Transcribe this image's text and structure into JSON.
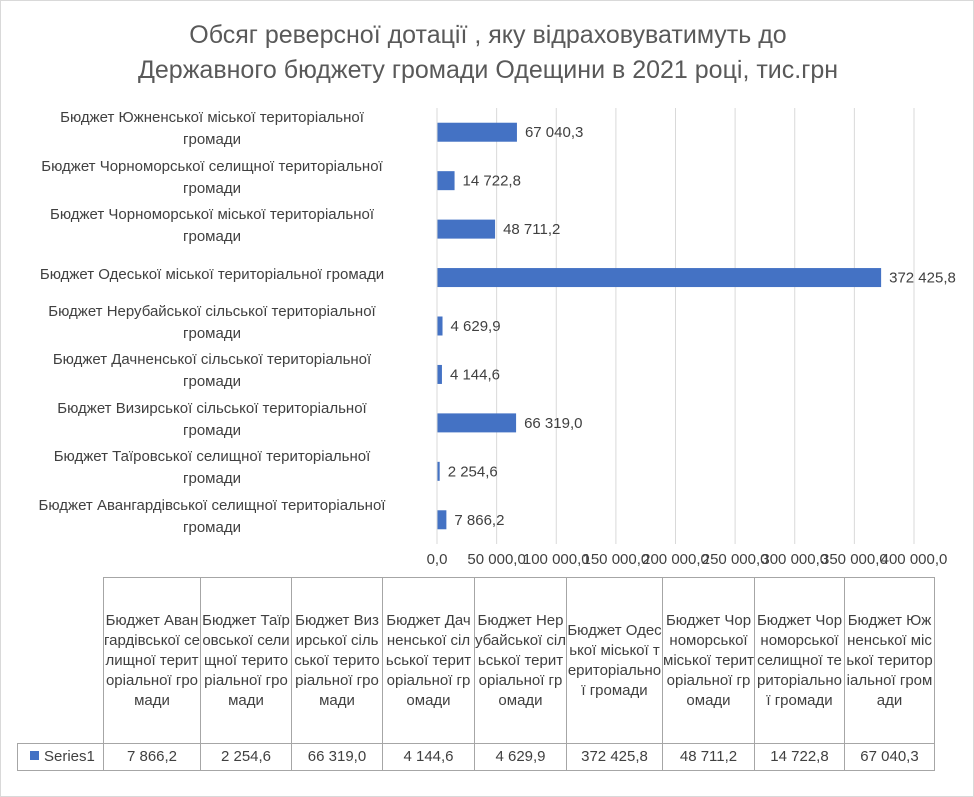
{
  "chart_data": {
    "type": "bar",
    "orientation": "horizontal",
    "title_lines": [
      "Обсяг реверсної  дотації , яку відраховуватимуть до",
      "Державного бюджету громади Одещини в 2021 році, тис.грн"
    ],
    "categories": [
      "Бюджет Авангардівської селищної територіальної громади",
      "Бюджет Таїровської селищної територіальної громади",
      "Бюджет Визирської сільської територіальної громади",
      "Бюджет Дачненської сільської територіальної громади",
      "Бюджет Нерубайської сільської територіальної громади",
      "Бюджет Одеської міської територіальної громади",
      "Бюджет Чорноморської міської територіальної громади",
      "Бюджет Чорноморської селищної територіальної громади",
      "Бюджет Южненської міської територіальної громади"
    ],
    "axis_category_labels": [
      [
        "Бюджет Авангардівської селищної територіальної",
        "громади"
      ],
      [
        "Бюджет Таїровської селищної територіальної",
        "громади"
      ],
      [
        "Бюджет Визирської сільської територіальної",
        "громади"
      ],
      [
        "Бюджет Дачненської сільської територіальної",
        "громади"
      ],
      [
        "Бюджет Нерубайської сільської територіальної",
        "громади"
      ],
      [
        "Бюджет Одеської міської територіальної громади"
      ],
      [
        "Бюджет Чорноморської міської територіальної",
        "громади"
      ],
      [
        "Бюджет Чорноморської селищної територіальної",
        "громади"
      ],
      [
        "Бюджет Южненської міської територіальної",
        "громади"
      ]
    ],
    "series": [
      {
        "name": "Series1",
        "values": [
          7866.2,
          2254.6,
          66319.0,
          4144.6,
          4629.9,
          372425.8,
          48711.2,
          14722.8,
          67040.3
        ],
        "labels": [
          "7 866,2",
          "2 254,6",
          "66 319,0",
          "4 144,6",
          "4 629,9",
          "372 425,8",
          "48 711,2",
          "14 722,8",
          "67 040,3"
        ]
      }
    ],
    "xlim": [
      0,
      400000
    ],
    "x_ticks": [
      0,
      50000,
      100000,
      150000,
      200000,
      250000,
      300000,
      350000,
      400000
    ],
    "x_tick_labels": [
      "0,0",
      "50 000,0",
      "100 000,0",
      "150 000,0",
      "200 000,0",
      "250 000,0",
      "300 000,0",
      "350 000,0",
      "400 000,0"
    ],
    "grid": "vertical",
    "data_table": {
      "show": true,
      "legend_key": "Series1",
      "values": [
        "7 866,2",
        "2 254,6",
        "66 319,0",
        "4 144,6",
        "4 629,9",
        "372 425,8",
        "48 711,2",
        "14 722,8",
        "67 040,3"
      ]
    },
    "colors": {
      "bar": "#4472c4",
      "grid": "#d9d9d9",
      "text": "#404040",
      "title": "#595959"
    }
  }
}
